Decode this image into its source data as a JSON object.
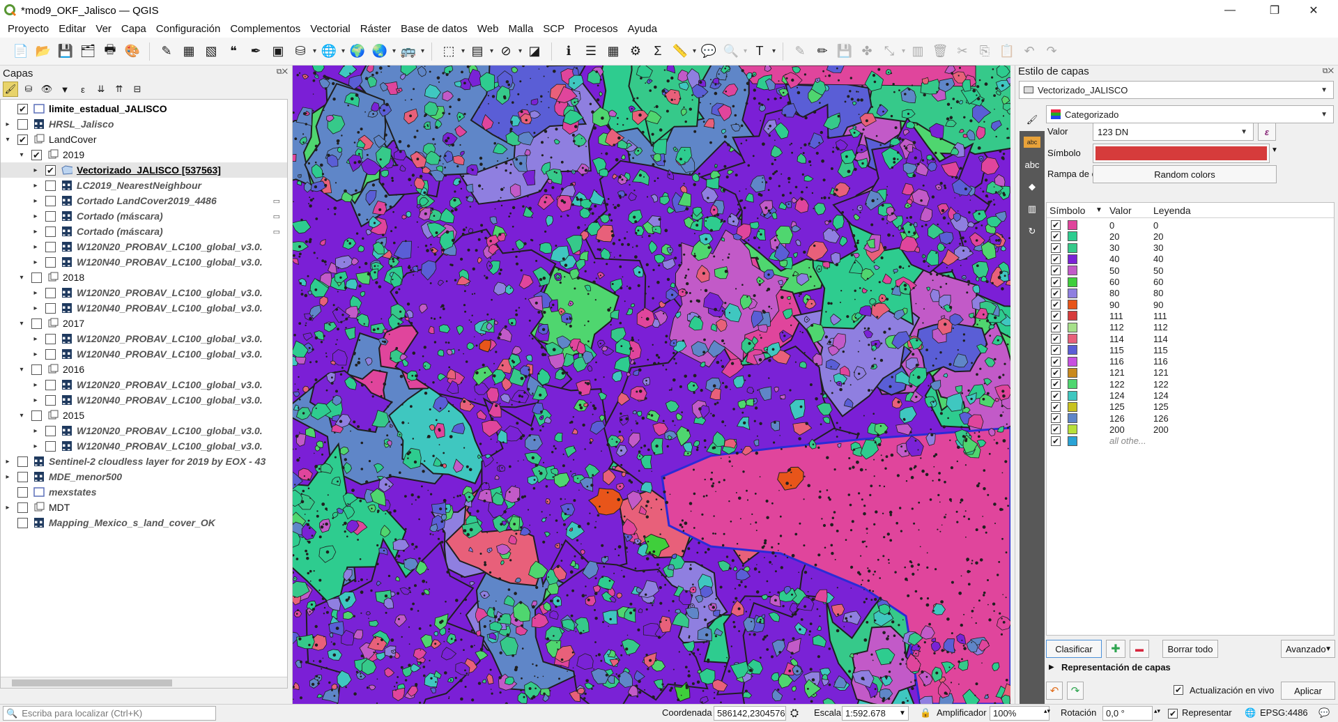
{
  "window": {
    "title": "*mod9_OKF_Jalisco — QGIS",
    "minimize_glyph": "—",
    "restore_glyph": "❐",
    "close_glyph": "✕"
  },
  "menu": [
    "Proyecto",
    "Editar",
    "Ver",
    "Capa",
    "Configuración",
    "Complementos",
    "Vectorial",
    "Ráster",
    "Base de datos",
    "Web",
    "Malla",
    "SCP",
    "Procesos",
    "Ayuda"
  ],
  "layers_panel": {
    "title": "Capas",
    "tree": [
      {
        "name": "limite_estadual_JALISCO",
        "checked": true,
        "style": "bold",
        "indent": 0,
        "arrow": "",
        "icon": "polygon-layer-icon"
      },
      {
        "name": "HRSL_Jalisco",
        "checked": false,
        "style": "it",
        "indent": 0,
        "arrow": "▸",
        "icon": "raster-layer-icon"
      },
      {
        "name": "LandCover",
        "checked": true,
        "style": "grp",
        "indent": 0,
        "arrow": "▾",
        "icon": "group-icon"
      },
      {
        "name": "2019",
        "checked": true,
        "style": "grp",
        "indent": 1,
        "arrow": "▾",
        "icon": "group-icon"
      },
      {
        "name": "Vectorizado_JALISCO [537563]",
        "checked": true,
        "style": "sel",
        "indent": 2,
        "arrow": "▸",
        "icon": "polygon-layer-icon",
        "selected": true
      },
      {
        "name": "LC2019_NearestNeighbour",
        "checked": false,
        "style": "it",
        "indent": 2,
        "arrow": "▸",
        "icon": "raster-layer-icon"
      },
      {
        "name": "Cortado LandCover2019_4486",
        "checked": false,
        "style": "it",
        "indent": 2,
        "arrow": "▸",
        "icon": "raster-layer-icon",
        "badge": "▭"
      },
      {
        "name": "Cortado (máscara)",
        "checked": false,
        "style": "it",
        "indent": 2,
        "arrow": "▸",
        "icon": "raster-layer-icon",
        "badge": "▭"
      },
      {
        "name": "Cortado (máscara)",
        "checked": false,
        "style": "it",
        "indent": 2,
        "arrow": "▸",
        "icon": "raster-layer-icon",
        "badge": "▭"
      },
      {
        "name": "W120N20_PROBAV_LC100_global_v3.0.",
        "checked": false,
        "style": "it",
        "indent": 2,
        "arrow": "▸",
        "icon": "raster-layer-icon"
      },
      {
        "name": "W120N40_PROBAV_LC100_global_v3.0.",
        "checked": false,
        "style": "it",
        "indent": 2,
        "arrow": "▸",
        "icon": "raster-layer-icon"
      },
      {
        "name": "2018",
        "checked": false,
        "style": "grp",
        "indent": 1,
        "arrow": "▾",
        "icon": "group-icon"
      },
      {
        "name": "W120N20_PROBAV_LC100_global_v3.0.",
        "checked": false,
        "style": "it",
        "indent": 2,
        "arrow": "▸",
        "icon": "raster-layer-icon"
      },
      {
        "name": "W120N40_PROBAV_LC100_global_v3.0.",
        "checked": false,
        "style": "it",
        "indent": 2,
        "arrow": "▸",
        "icon": "raster-layer-icon"
      },
      {
        "name": "2017",
        "checked": false,
        "style": "grp",
        "indent": 1,
        "arrow": "▾",
        "icon": "group-icon"
      },
      {
        "name": "W120N20_PROBAV_LC100_global_v3.0.",
        "checked": false,
        "style": "it",
        "indent": 2,
        "arrow": "▸",
        "icon": "raster-layer-icon"
      },
      {
        "name": "W120N40_PROBAV_LC100_global_v3.0.",
        "checked": false,
        "style": "it",
        "indent": 2,
        "arrow": "▸",
        "icon": "raster-layer-icon"
      },
      {
        "name": "2016",
        "checked": false,
        "style": "grp",
        "indent": 1,
        "arrow": "▾",
        "icon": "group-icon"
      },
      {
        "name": "W120N20_PROBAV_LC100_global_v3.0.",
        "checked": false,
        "style": "it",
        "indent": 2,
        "arrow": "▸",
        "icon": "raster-layer-icon"
      },
      {
        "name": "W120N40_PROBAV_LC100_global_v3.0.",
        "checked": false,
        "style": "it",
        "indent": 2,
        "arrow": "▸",
        "icon": "raster-layer-icon"
      },
      {
        "name": "2015",
        "checked": false,
        "style": "grp",
        "indent": 1,
        "arrow": "▾",
        "icon": "group-icon"
      },
      {
        "name": "W120N20_PROBAV_LC100_global_v3.0.",
        "checked": false,
        "style": "it",
        "indent": 2,
        "arrow": "▸",
        "icon": "raster-layer-icon"
      },
      {
        "name": "W120N40_PROBAV_LC100_global_v3.0.",
        "checked": false,
        "style": "it",
        "indent": 2,
        "arrow": "▸",
        "icon": "raster-layer-icon"
      },
      {
        "name": "Sentinel-2 cloudless layer for 2019 by EOX - 43",
        "checked": false,
        "style": "it",
        "indent": 0,
        "arrow": "▸",
        "icon": "raster-layer-icon"
      },
      {
        "name": "MDE_menor500",
        "checked": false,
        "style": "it",
        "indent": 0,
        "arrow": "▸",
        "icon": "raster-layer-icon"
      },
      {
        "name": "mexstates",
        "checked": false,
        "style": "it",
        "indent": 0,
        "arrow": "",
        "icon": "polygon-layer-icon"
      },
      {
        "name": "MDT",
        "checked": false,
        "style": "grp",
        "indent": 0,
        "arrow": "▸",
        "icon": "group-icon"
      },
      {
        "name": "Mapping_Mexico_s_land_cover_OK",
        "checked": false,
        "style": "it",
        "indent": 0,
        "arrow": "",
        "icon": "raster-layer-icon"
      }
    ]
  },
  "style_panel": {
    "title": "Estilo de capas",
    "layer_combo": "Vectorizado_JALISCO",
    "renderer": "Categorizado",
    "value_label": "Valor",
    "value_field": "123 DN",
    "expression_glyph": "ε",
    "symbol_label": "Símbolo",
    "symbol_color": "#d63b3b",
    "ramp_label": "Rampa de color",
    "ramp_value": "Random colors",
    "columns": [
      "Símbolo",
      "Valor",
      "Leyenda"
    ],
    "categories": [
      {
        "value": "0",
        "legend": "0",
        "color": "#e0459c"
      },
      {
        "value": "20",
        "legend": "20",
        "color": "#2ecc8f"
      },
      {
        "value": "30",
        "legend": "30",
        "color": "#36c98a"
      },
      {
        "value": "40",
        "legend": "40",
        "color": "#7a22d6"
      },
      {
        "value": "50",
        "legend": "50",
        "color": "#c25ac8"
      },
      {
        "value": "60",
        "legend": "60",
        "color": "#3fcf3b"
      },
      {
        "value": "80",
        "legend": "80",
        "color": "#8f7fe0"
      },
      {
        "value": "90",
        "legend": "90",
        "color": "#e8551a"
      },
      {
        "value": "111",
        "legend": "111",
        "color": "#d63b3b"
      },
      {
        "value": "112",
        "legend": "112",
        "color": "#a6e08a"
      },
      {
        "value": "114",
        "legend": "114",
        "color": "#e8607a"
      },
      {
        "value": "115",
        "legend": "115",
        "color": "#5a5ed6"
      },
      {
        "value": "116",
        "legend": "116",
        "color": "#c750e0"
      },
      {
        "value": "121",
        "legend": "121",
        "color": "#c98a1e"
      },
      {
        "value": "122",
        "legend": "122",
        "color": "#4fd66f"
      },
      {
        "value": "124",
        "legend": "124",
        "color": "#3fc7c0"
      },
      {
        "value": "125",
        "legend": "125",
        "color": "#c8c21f"
      },
      {
        "value": "126",
        "legend": "126",
        "color": "#5f86c8"
      },
      {
        "value": "200",
        "legend": "200",
        "color": "#b8e03a"
      },
      {
        "value": "all othe...",
        "legend": "",
        "color": "#2aa3d6",
        "other": true
      }
    ],
    "classify_btn": "Clasificar",
    "add_glyph": "✚",
    "remove_glyph": "▬",
    "delete_all_btn": "Borrar todo",
    "advanced_btn": "Avanzado",
    "layer_rendering": "Representación de capas",
    "live_update": "Actualización en vivo",
    "apply_btn": "Aplicar"
  },
  "statusbar": {
    "search_placeholder": "Escriba para localizar (Ctrl+K)",
    "coord_label": "Coordenada",
    "coord_value": "586142,2304576",
    "scale_label": "Escala",
    "scale_value": "1:592.678",
    "magnifier_label": "Amplificador",
    "magnifier_value": "100%",
    "rotation_label": "Rotación",
    "rotation_value": "0,0 °",
    "render_label": "Representar",
    "crs": "EPSG:4486"
  },
  "colors": {
    "map_base": "#7b1fd6",
    "map_edges": "#1f1f1f"
  }
}
